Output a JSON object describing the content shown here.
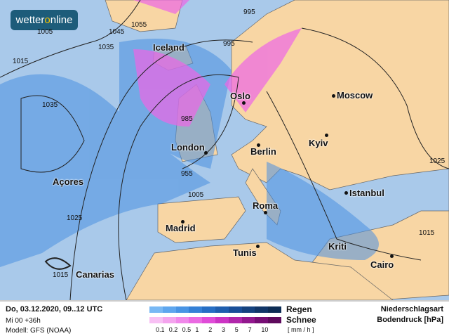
{
  "logo": {
    "text_a": "wetter",
    "text_o": "o",
    "text_b": "nline"
  },
  "cities": [
    {
      "name": "Iceland",
      "dot": false
    },
    {
      "name": "Oslo",
      "dot": true
    },
    {
      "name": "Moscow",
      "dot": true
    },
    {
      "name": "London",
      "dot": true
    },
    {
      "name": "Berlin",
      "dot": true
    },
    {
      "name": "Kyiv",
      "dot": true
    },
    {
      "name": "Açores",
      "dot": false
    },
    {
      "name": "Istanbul",
      "dot": true
    },
    {
      "name": "Roma",
      "dot": true
    },
    {
      "name": "Madrid",
      "dot": true
    },
    {
      "name": "Tunis",
      "dot": true
    },
    {
      "name": "Kriti",
      "dot": false
    },
    {
      "name": "Canarias",
      "dot": false
    },
    {
      "name": "Cairo",
      "dot": true
    }
  ],
  "isobars": [
    "1005",
    "1015",
    "1045",
    "1055",
    "995",
    "1035",
    "995",
    "985",
    "955",
    "1005",
    "1025",
    "1015",
    "1015",
    "1035",
    "1025"
  ],
  "footer": {
    "date": "Do, 03.12.2020, 09..12 UTC",
    "run": "Mi 00 +36h",
    "model": "Modell: GFS (NOAA)",
    "rain_label": "Regen",
    "snow_label": "Schnee",
    "unit": "[ mm / h ]",
    "title1": "Niederschlagsart",
    "title2": "Bodendruck [hPa]",
    "ticks": [
      "0.1",
      "0.2",
      "0.5",
      "1",
      "2",
      "3",
      "5",
      "7",
      "10"
    ],
    "rain_colors": [
      "#78b8f4",
      "#5ea6ee",
      "#4894e4",
      "#3480d6",
      "#266ec4",
      "#1e5eae",
      "#184e98",
      "#14427f",
      "#103668",
      "#0c2c54"
    ],
    "snow_colors": [
      "#f8c0f4",
      "#f4a4ee",
      "#f088ea",
      "#ea6ae2",
      "#e04cd8",
      "#cc34c4",
      "#b026aa",
      "#92188e",
      "#760e74",
      "#5e0a5c"
    ]
  },
  "colors": {
    "sea": "#a9c9ea",
    "land": "#f8d6a4",
    "rain": "#4a90e0",
    "snow": "#ee66e6"
  }
}
